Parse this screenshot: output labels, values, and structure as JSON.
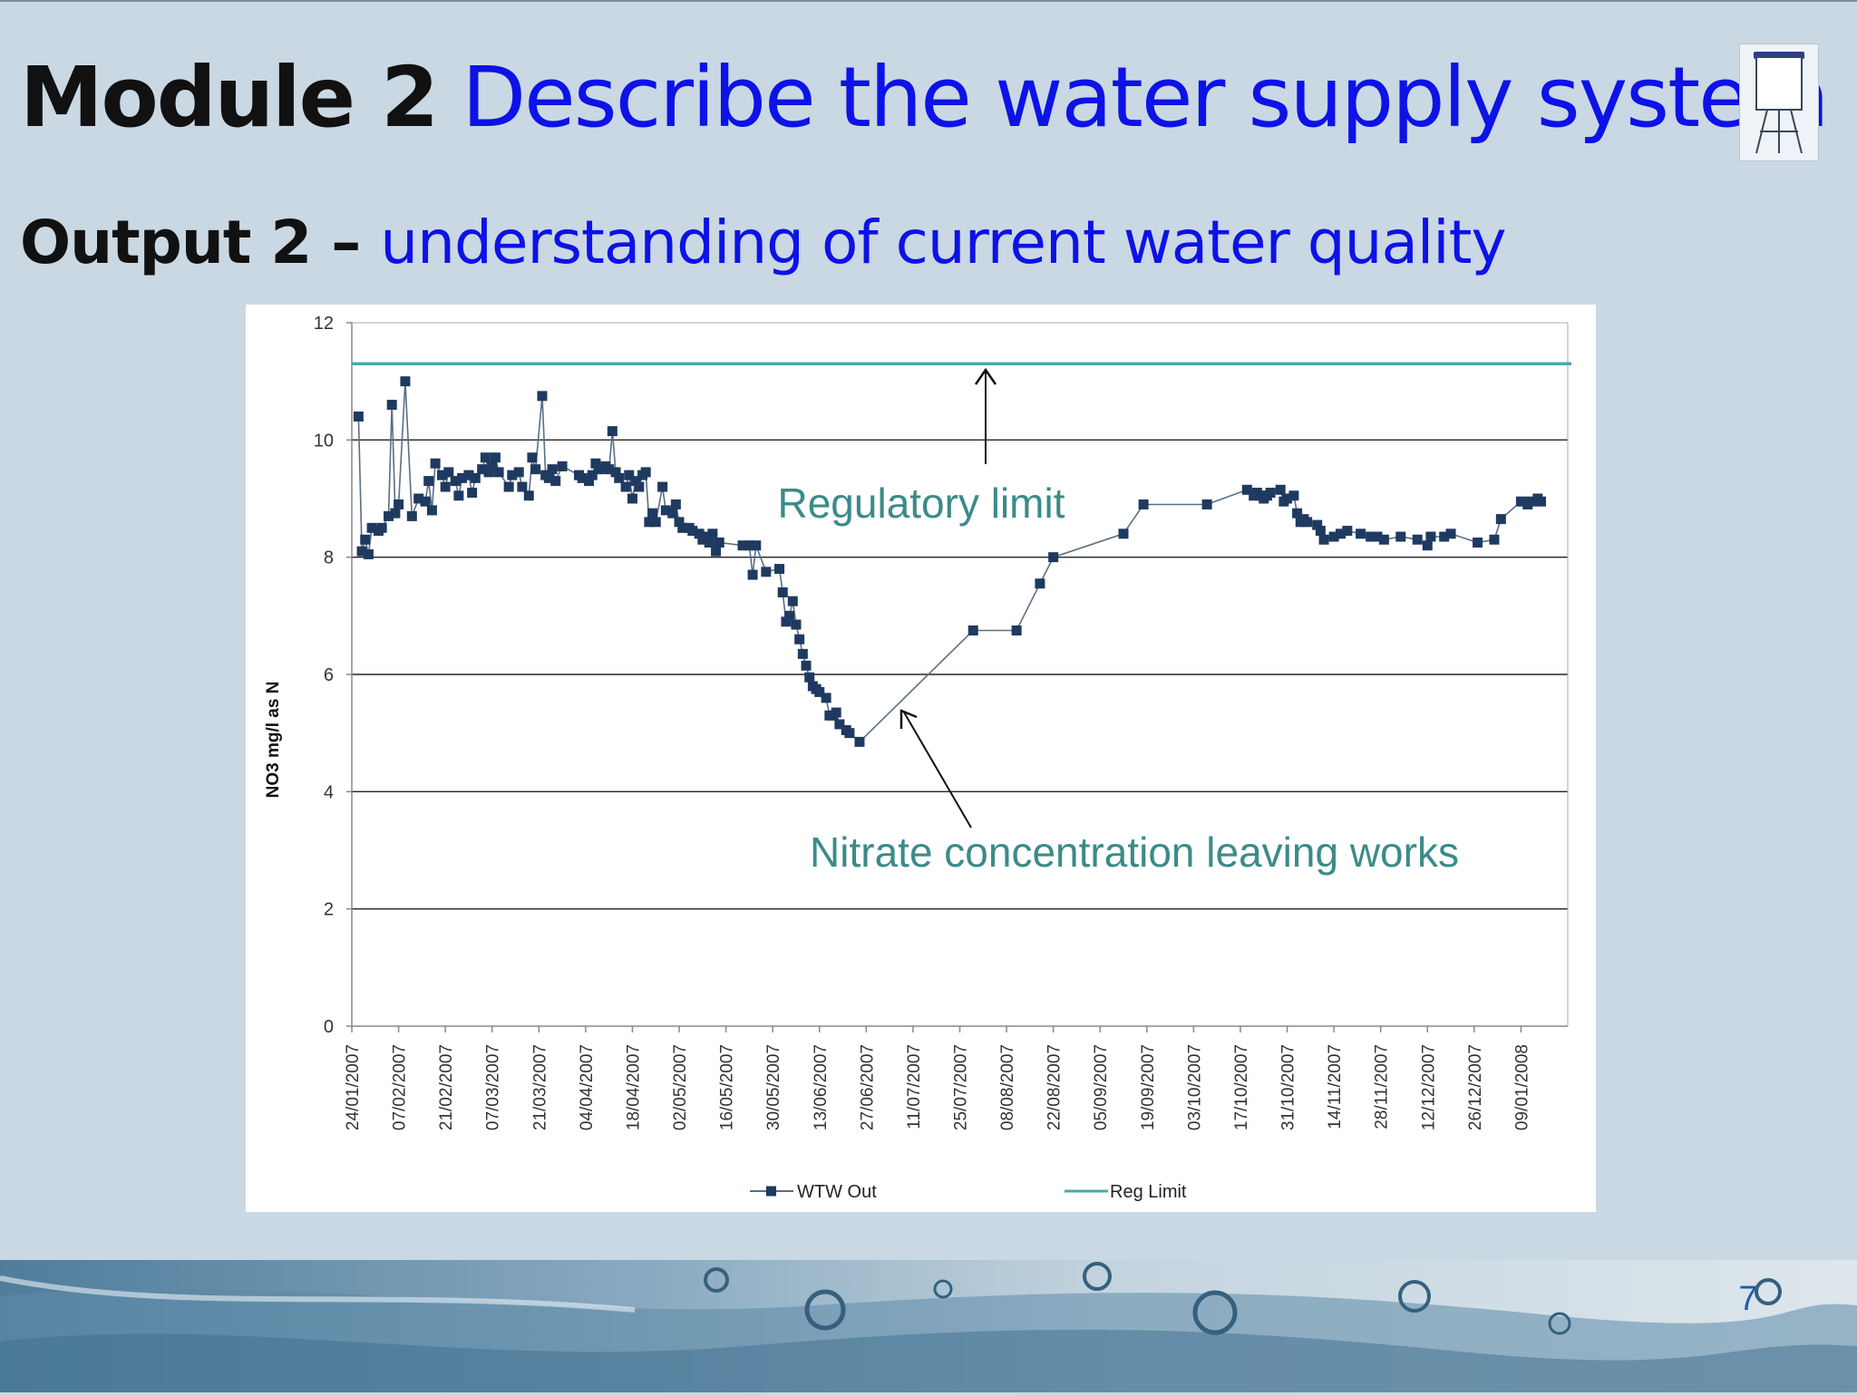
{
  "slide": {
    "title_bold": "Module 2",
    "title_rest": " Describe the water supply system",
    "subtitle_bold": "Output 2 – ",
    "subtitle_rest": "understanding of current water quality",
    "page_number": "7",
    "icon": "flipchart-icon"
  },
  "colors": {
    "title_blue": "#0d12e6",
    "series_wtw": "#1f3a60",
    "series_reg": "#4aa8ad",
    "annotation": "#3b8b88"
  },
  "chart_data": {
    "type": "line",
    "ylabel": "NO3 mg/l as N",
    "xlabel": "",
    "ylim": [
      0,
      12
    ],
    "yticks": [
      0,
      2,
      4,
      6,
      8,
      10,
      12
    ],
    "xlim": [
      "2007-01-24",
      "2008-01-23"
    ],
    "xtick_labels": [
      "24/01/2007",
      "07/02/2007",
      "21/02/2007",
      "07/03/2007",
      "21/03/2007",
      "04/04/2007",
      "18/04/2007",
      "02/05/2007",
      "16/05/2007",
      "30/05/2007",
      "13/06/2007",
      "27/06/2007",
      "11/07/2007",
      "25/07/2007",
      "08/08/2007",
      "22/08/2007",
      "05/09/2007",
      "19/09/2007",
      "03/10/2007",
      "17/10/2007",
      "31/10/2007",
      "14/11/2007",
      "28/11/2007",
      "12/12/2007",
      "26/12/2007",
      "09/01/2008"
    ],
    "grid": "horizontal",
    "legend": {
      "placement": "bottom",
      "entries": [
        "WTW Out",
        "Reg Limit"
      ]
    },
    "annotations": [
      {
        "text": "Regulatory limit",
        "points_to": "Reg Limit"
      },
      {
        "text": "Nitrate concentration leaving works",
        "points_to": "WTW Out"
      }
    ],
    "series": [
      {
        "name": "WTW Out",
        "marker": "square",
        "points": [
          [
            "2007-01-26",
            10.4
          ],
          [
            "2007-01-27",
            8.1
          ],
          [
            "2007-01-28",
            8.3
          ],
          [
            "2007-01-29",
            8.05
          ],
          [
            "2007-01-30",
            8.5
          ],
          [
            "2007-02-01",
            8.45
          ],
          [
            "2007-02-02",
            8.5
          ],
          [
            "2007-02-04",
            8.7
          ],
          [
            "2007-02-05",
            10.6
          ],
          [
            "2007-02-06",
            8.75
          ],
          [
            "2007-02-07",
            8.9
          ],
          [
            "2007-02-09",
            11.0
          ],
          [
            "2007-02-11",
            8.7
          ],
          [
            "2007-02-13",
            9.0
          ],
          [
            "2007-02-15",
            8.95
          ],
          [
            "2007-02-16",
            9.3
          ],
          [
            "2007-02-17",
            8.8
          ],
          [
            "2007-02-18",
            9.6
          ],
          [
            "2007-02-20",
            9.4
          ],
          [
            "2007-02-21",
            9.2
          ],
          [
            "2007-02-22",
            9.45
          ],
          [
            "2007-02-24",
            9.3
          ],
          [
            "2007-02-25",
            9.05
          ],
          [
            "2007-02-26",
            9.35
          ],
          [
            "2007-02-28",
            9.4
          ],
          [
            "2007-03-01",
            9.1
          ],
          [
            "2007-03-02",
            9.35
          ],
          [
            "2007-03-04",
            9.5
          ],
          [
            "2007-03-05",
            9.7
          ],
          [
            "2007-03-06",
            9.45
          ],
          [
            "2007-03-07",
            9.55
          ],
          [
            "2007-03-08",
            9.7
          ],
          [
            "2007-03-09",
            9.45
          ],
          [
            "2007-03-12",
            9.2
          ],
          [
            "2007-03-13",
            9.4
          ],
          [
            "2007-03-15",
            9.45
          ],
          [
            "2007-03-16",
            9.2
          ],
          [
            "2007-03-18",
            9.05
          ],
          [
            "2007-03-19",
            9.7
          ],
          [
            "2007-03-20",
            9.5
          ],
          [
            "2007-03-22",
            10.75
          ],
          [
            "2007-03-23",
            9.4
          ],
          [
            "2007-03-24",
            9.35
          ],
          [
            "2007-03-25",
            9.5
          ],
          [
            "2007-03-26",
            9.3
          ],
          [
            "2007-03-28",
            9.55
          ],
          [
            "2007-04-02",
            9.4
          ],
          [
            "2007-04-03",
            9.35
          ],
          [
            "2007-04-05",
            9.3
          ],
          [
            "2007-04-06",
            9.4
          ],
          [
            "2007-04-07",
            9.6
          ],
          [
            "2007-04-08",
            9.5
          ],
          [
            "2007-04-10",
            9.55
          ],
          [
            "2007-04-11",
            9.5
          ],
          [
            "2007-04-12",
            10.15
          ],
          [
            "2007-04-13",
            9.45
          ],
          [
            "2007-04-14",
            9.35
          ],
          [
            "2007-04-16",
            9.2
          ],
          [
            "2007-04-17",
            9.4
          ],
          [
            "2007-04-18",
            9.0
          ],
          [
            "2007-04-19",
            9.3
          ],
          [
            "2007-04-20",
            9.2
          ],
          [
            "2007-04-21",
            9.4
          ],
          [
            "2007-04-22",
            9.45
          ],
          [
            "2007-04-23",
            8.6
          ],
          [
            "2007-04-24",
            8.75
          ],
          [
            "2007-04-25",
            8.6
          ],
          [
            "2007-04-27",
            9.2
          ],
          [
            "2007-04-28",
            8.8
          ],
          [
            "2007-04-30",
            8.75
          ],
          [
            "2007-05-01",
            8.9
          ],
          [
            "2007-05-02",
            8.6
          ],
          [
            "2007-05-03",
            8.5
          ],
          [
            "2007-05-05",
            8.5
          ],
          [
            "2007-05-06",
            8.45
          ],
          [
            "2007-05-08",
            8.4
          ],
          [
            "2007-05-09",
            8.3
          ],
          [
            "2007-05-10",
            8.35
          ],
          [
            "2007-05-11",
            8.25
          ],
          [
            "2007-05-12",
            8.4
          ],
          [
            "2007-05-13",
            8.1
          ],
          [
            "2007-05-14",
            8.25
          ],
          [
            "2007-05-21",
            8.2
          ],
          [
            "2007-05-23",
            8.2
          ],
          [
            "2007-05-24",
            7.7
          ],
          [
            "2007-05-25",
            8.2
          ],
          [
            "2007-05-28",
            7.75
          ],
          [
            "2007-06-01",
            7.8
          ],
          [
            "2007-06-02",
            7.4
          ],
          [
            "2007-06-03",
            6.9
          ],
          [
            "2007-06-04",
            7.0
          ],
          [
            "2007-06-05",
            7.25
          ],
          [
            "2007-06-06",
            6.85
          ],
          [
            "2007-06-07",
            6.6
          ],
          [
            "2007-06-08",
            6.35
          ],
          [
            "2007-06-09",
            6.15
          ],
          [
            "2007-06-10",
            5.95
          ],
          [
            "2007-06-11",
            5.8
          ],
          [
            "2007-06-12",
            5.75
          ],
          [
            "2007-06-13",
            5.7
          ],
          [
            "2007-06-15",
            5.6
          ],
          [
            "2007-06-16",
            5.3
          ],
          [
            "2007-06-17",
            5.3
          ],
          [
            "2007-06-18",
            5.35
          ],
          [
            "2007-06-19",
            5.15
          ],
          [
            "2007-06-21",
            5.05
          ],
          [
            "2007-06-22",
            5.0
          ],
          [
            "2007-06-25",
            4.85
          ],
          [
            "2007-07-29",
            6.75
          ],
          [
            "2007-08-11",
            6.75
          ],
          [
            "2007-08-18",
            7.55
          ],
          [
            "2007-08-22",
            8.0
          ],
          [
            "2007-09-12",
            8.4
          ],
          [
            "2007-09-18",
            8.9
          ],
          [
            "2007-10-07",
            8.9
          ],
          [
            "2007-10-19",
            9.15
          ],
          [
            "2007-10-21",
            9.05
          ],
          [
            "2007-10-22",
            9.1
          ],
          [
            "2007-10-23",
            9.05
          ],
          [
            "2007-10-24",
            9.0
          ],
          [
            "2007-10-25",
            9.05
          ],
          [
            "2007-10-26",
            9.1
          ],
          [
            "2007-10-29",
            9.15
          ],
          [
            "2007-10-30",
            8.95
          ],
          [
            "2007-10-31",
            9.0
          ],
          [
            "2007-11-02",
            9.05
          ],
          [
            "2007-11-03",
            8.75
          ],
          [
            "2007-11-04",
            8.6
          ],
          [
            "2007-11-05",
            8.65
          ],
          [
            "2007-11-06",
            8.6
          ],
          [
            "2007-11-09",
            8.55
          ],
          [
            "2007-11-10",
            8.45
          ],
          [
            "2007-11-11",
            8.3
          ],
          [
            "2007-11-14",
            8.35
          ],
          [
            "2007-11-16",
            8.4
          ],
          [
            "2007-11-18",
            8.45
          ],
          [
            "2007-11-22",
            8.4
          ],
          [
            "2007-11-25",
            8.35
          ],
          [
            "2007-11-27",
            8.35
          ],
          [
            "2007-11-29",
            8.3
          ],
          [
            "2007-12-04",
            8.35
          ],
          [
            "2007-12-09",
            8.3
          ],
          [
            "2007-12-12",
            8.2
          ],
          [
            "2007-12-13",
            8.35
          ],
          [
            "2007-12-17",
            8.35
          ],
          [
            "2007-12-19",
            8.4
          ],
          [
            "2007-12-27",
            8.25
          ],
          [
            "2008-01-01",
            8.3
          ],
          [
            "2008-01-03",
            8.65
          ],
          [
            "2008-01-09",
            8.95
          ],
          [
            "2008-01-11",
            8.9
          ],
          [
            "2008-01-12",
            8.95
          ],
          [
            "2008-01-14",
            9.0
          ],
          [
            "2008-01-15",
            8.95
          ]
        ]
      },
      {
        "name": "Reg Limit",
        "value": 11.3
      }
    ]
  }
}
